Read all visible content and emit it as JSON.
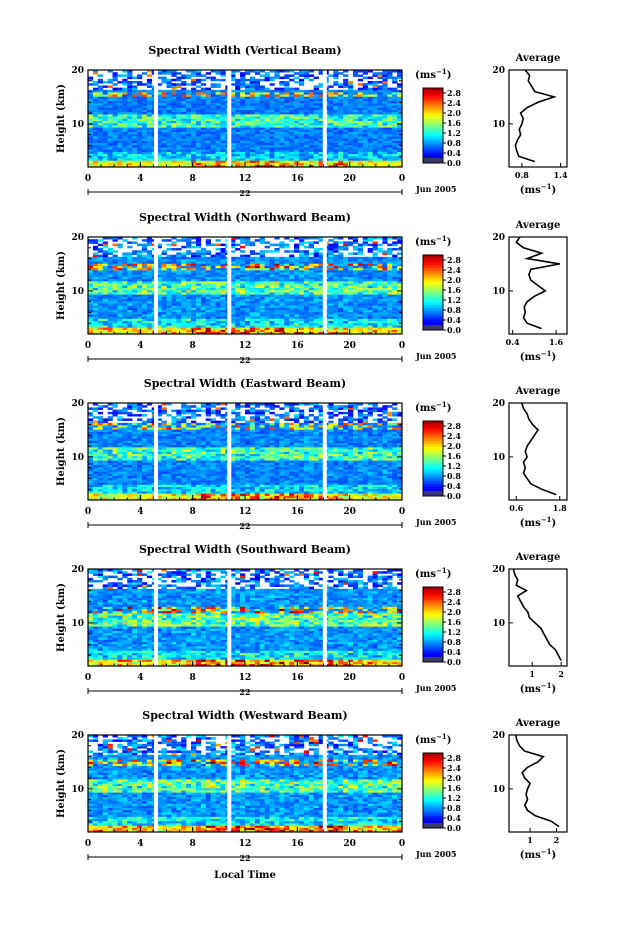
{
  "figure": {
    "xlabel": "Local Time",
    "date_label": "Jun 2005",
    "day_label": "22",
    "ylabel": "Height (km)",
    "avg_title": "Average",
    "unit": "(ms",
    "unit_exp": "−1",
    "unit_close": ")"
  },
  "chart_data": [
    {
      "type": "heatmap",
      "title": "Spectral Width (Vertical Beam)",
      "ylabel": "Height (km)",
      "xlabel": "",
      "xlim": [
        0,
        24
      ],
      "ylim": [
        2,
        20
      ],
      "xticks": [
        "0",
        "4",
        "8",
        "12",
        "16",
        "20",
        "0"
      ],
      "yticks": [
        "10",
        "20"
      ],
      "colorbar_ticks": [
        "0.0",
        "0.4",
        "0.8",
        "1.2",
        "1.6",
        "2.0",
        "2.4",
        "2.8"
      ],
      "colorbar_range": [
        0,
        3.0
      ],
      "data_gaps_hours": [
        5.2,
        10.8,
        18.1
      ],
      "profile": {
        "title": "Average",
        "xticks": [
          "0.8",
          "1.4"
        ],
        "xlim": [
          0.6,
          1.5
        ],
        "height_km": [
          3,
          4,
          5,
          6,
          7,
          8,
          9,
          10,
          11,
          12,
          13,
          14,
          15,
          16,
          17,
          18,
          19,
          20
        ],
        "value": [
          1.0,
          0.75,
          0.72,
          0.7,
          0.73,
          0.78,
          0.76,
          0.8,
          0.82,
          0.78,
          0.88,
          1.05,
          1.3,
          1.0,
          0.95,
          0.9,
          0.92,
          0.85
        ]
      }
    },
    {
      "type": "heatmap",
      "title": "Spectral Width (Northward Beam)",
      "ylabel": "Height (km)",
      "xlabel": "",
      "xlim": [
        0,
        24
      ],
      "ylim": [
        2,
        20
      ],
      "xticks": [
        "0",
        "4",
        "8",
        "12",
        "16",
        "20",
        "0"
      ],
      "yticks": [
        "10",
        "20"
      ],
      "colorbar_ticks": [
        "0.0",
        "0.4",
        "0.8",
        "1.2",
        "1.6",
        "2.0",
        "2.4",
        "2.8"
      ],
      "colorbar_range": [
        0,
        3.0
      ],
      "data_gaps_hours": [
        5.2,
        10.8,
        18.1
      ],
      "profile": {
        "title": "Average",
        "xticks": [
          "0.4",
          "1.6"
        ],
        "xlim": [
          0.3,
          1.9
        ],
        "height_km": [
          3,
          4,
          5,
          6,
          7,
          8,
          9,
          10,
          11,
          12,
          13,
          14,
          15,
          16,
          17,
          18,
          19,
          20
        ],
        "value": [
          1.2,
          0.8,
          0.7,
          0.75,
          0.72,
          0.8,
          1.0,
          1.3,
          1.1,
          0.9,
          0.85,
          0.9,
          1.7,
          0.8,
          1.2,
          0.7,
          0.5,
          0.6
        ]
      }
    },
    {
      "type": "heatmap",
      "title": "Spectral Width (Eastward Beam)",
      "ylabel": "Height (km)",
      "xlabel": "",
      "xlim": [
        0,
        24
      ],
      "ylim": [
        2,
        20
      ],
      "xticks": [
        "0",
        "4",
        "8",
        "12",
        "16",
        "20",
        "0"
      ],
      "yticks": [
        "10",
        "20"
      ],
      "colorbar_ticks": [
        "0.0",
        "0.4",
        "0.8",
        "1.2",
        "1.6",
        "2.0",
        "2.4",
        "2.8"
      ],
      "colorbar_range": [
        0,
        3.0
      ],
      "data_gaps_hours": [
        5.2,
        10.8,
        18.1
      ],
      "profile": {
        "title": "Average",
        "xticks": [
          "0.6",
          "1.8"
        ],
        "xlim": [
          0.4,
          2.0
        ],
        "height_km": [
          3,
          4,
          5,
          6,
          7,
          8,
          9,
          10,
          11,
          12,
          13,
          14,
          15,
          16,
          17,
          18,
          19,
          20
        ],
        "value": [
          1.7,
          1.3,
          1.0,
          0.9,
          0.8,
          0.85,
          0.8,
          0.9,
          0.85,
          0.9,
          1.0,
          1.1,
          1.2,
          1.05,
          0.95,
          0.9,
          0.8,
          0.75
        ]
      }
    },
    {
      "type": "heatmap",
      "title": "Spectral Width (Southward Beam)",
      "ylabel": "Height (km)",
      "xlabel": "",
      "xlim": [
        0,
        24
      ],
      "ylim": [
        2,
        20
      ],
      "xticks": [
        "0",
        "4",
        "8",
        "12",
        "16",
        "20",
        "0"
      ],
      "yticks": [
        "10",
        "20"
      ],
      "colorbar_ticks": [
        "0.0",
        "0.4",
        "0.8",
        "1.2",
        "1.6",
        "2.0",
        "2.4",
        "2.8"
      ],
      "colorbar_range": [
        0,
        3.0
      ],
      "data_gaps_hours": [
        5.2,
        10.8,
        18.1
      ],
      "profile": {
        "title": "Average",
        "xticks": [
          "1",
          "2"
        ],
        "xlim": [
          0.2,
          2.2
        ],
        "height_km": [
          3,
          4,
          5,
          6,
          7,
          8,
          9,
          10,
          11,
          12,
          13,
          14,
          15,
          16,
          17,
          18,
          19,
          20
        ],
        "value": [
          2.0,
          1.9,
          1.8,
          1.6,
          1.5,
          1.4,
          1.3,
          1.1,
          0.9,
          0.85,
          0.7,
          0.6,
          0.5,
          0.8,
          0.45,
          0.5,
          0.4,
          0.35
        ]
      }
    },
    {
      "type": "heatmap",
      "title": "Spectral Width (Westward Beam)",
      "ylabel": "Height (km)",
      "xlabel": "Local Time",
      "xlim": [
        0,
        24
      ],
      "ylim": [
        2,
        20
      ],
      "xticks": [
        "0",
        "4",
        "8",
        "12",
        "16",
        "20",
        "0"
      ],
      "yticks": [
        "10",
        "20"
      ],
      "colorbar_ticks": [
        "0.0",
        "0.4",
        "0.8",
        "1.2",
        "1.6",
        "2.0",
        "2.4",
        "2.8"
      ],
      "colorbar_range": [
        0,
        3.0
      ],
      "data_gaps_hours": [
        5.2,
        10.8,
        18.1
      ],
      "profile": {
        "title": "Average",
        "xticks": [
          "1",
          "2"
        ],
        "xlim": [
          0.2,
          2.4
        ],
        "height_km": [
          3,
          4,
          5,
          6,
          7,
          8,
          9,
          10,
          11,
          12,
          13,
          14,
          15,
          16,
          17,
          18,
          19,
          20
        ],
        "value": [
          2.1,
          1.8,
          1.2,
          0.9,
          0.8,
          0.9,
          0.85,
          0.9,
          1.0,
          0.8,
          0.7,
          0.9,
          1.3,
          1.5,
          0.8,
          0.6,
          0.5,
          0.45
        ]
      }
    }
  ]
}
